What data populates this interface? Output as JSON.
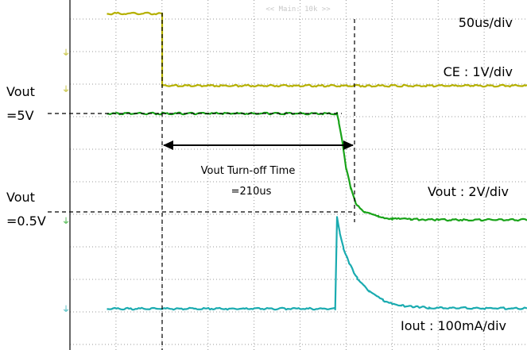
{
  "chart_data": {
    "type": "line",
    "title": "",
    "header_text": "<< Main: 10k >>",
    "xlabel": "",
    "ylabel": "",
    "grid": true,
    "x_unit": "us",
    "x_range": [
      -60,
      440
    ],
    "timebase_label": "50us/div",
    "channel_labels": {
      "ce": "CE : 1V/div",
      "vout": "Vout : 2V/div",
      "iout": "Iout : 100mA/div"
    },
    "level_labels": {
      "vout_5v_line1": "Vout",
      "vout_5v_line2": "=5V",
      "vout_05v_line1": "Vout",
      "vout_05v_line2": "=0.5V"
    },
    "annotation": {
      "line1": "Vout Turn-off Time",
      "line2": "=210us",
      "start_us": 0,
      "end_us": 210
    },
    "series": [
      {
        "name": "CE",
        "color": "#b5b000",
        "x": [
          -60,
          0,
          0,
          440
        ],
        "y": [
          4.8,
          4.8,
          0.2,
          0.2
        ]
      },
      {
        "name": "Vout",
        "color": "#19a319",
        "x": [
          -60,
          190,
          192,
          196,
          200,
          205,
          210,
          220,
          235,
          250,
          270,
          300,
          440
        ],
        "y": [
          5.0,
          5.0,
          4.6,
          3.6,
          2.4,
          1.5,
          0.8,
          0.35,
          0.15,
          0.05,
          0.02,
          0.0,
          0.0
        ]
      },
      {
        "name": "Iout",
        "color": "#1aabb0",
        "x": [
          -60,
          188,
          190,
          193,
          197,
          203,
          212,
          225,
          240,
          260,
          290,
          440
        ],
        "y": [
          0,
          0,
          240,
          200,
          160,
          120,
          80,
          45,
          22,
          8,
          2,
          0
        ]
      }
    ]
  }
}
